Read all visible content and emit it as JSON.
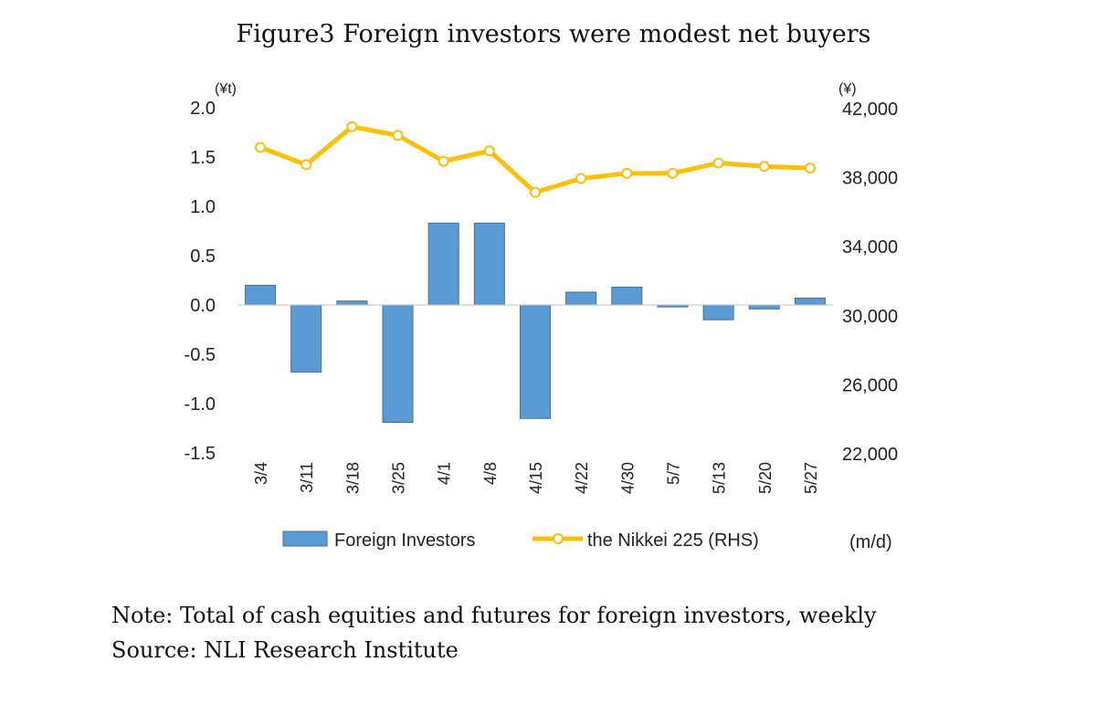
{
  "figure": {
    "title": "Figure3 Foreign investors were modest net buyers",
    "note": "Note: Total of cash equities and futures for foreign investors, weekly",
    "source": "Source: NLI Research Institute"
  },
  "chart_data": {
    "type": "bar",
    "title": "Figure3 Foreign investors were modest net buyers",
    "categories": [
      "3/4",
      "3/11",
      "3/18",
      "3/25",
      "4/1",
      "4/8",
      "4/15",
      "4/22",
      "4/30",
      "5/7",
      "5/13",
      "5/20",
      "5/27"
    ],
    "series": [
      {
        "name": "Foreign Investors",
        "type": "bar",
        "axis": "left",
        "color": "#5b9bd5",
        "values": [
          0.2,
          -0.68,
          0.04,
          -1.19,
          0.83,
          0.83,
          -1.15,
          0.13,
          0.18,
          -0.02,
          -0.15,
          -0.04,
          0.07
        ]
      },
      {
        "name": "the Nikkei 225 (RHS)",
        "type": "line",
        "axis": "right",
        "color": "#ffc000",
        "values": [
          39700,
          38700,
          40900,
          40400,
          38900,
          39500,
          37100,
          37900,
          38200,
          38200,
          38800,
          38600,
          38500
        ]
      }
    ],
    "left_axis": {
      "unit_label": "(¥t)",
      "min": -1.5,
      "max": 2.0,
      "ticks": [
        -1.5,
        -1.0,
        -0.5,
        0.0,
        0.5,
        1.0,
        1.5,
        2.0
      ],
      "tick_labels": [
        "-1.5",
        "-1.0",
        "-0.5",
        "0.0",
        "0.5",
        "1.0",
        "1.5",
        "2.0"
      ]
    },
    "right_axis": {
      "unit_label": "(¥)",
      "min": 22000,
      "max": 42000,
      "ticks": [
        22000,
        26000,
        30000,
        34000,
        38000,
        42000
      ],
      "tick_labels": [
        "22,000",
        "26,000",
        "30,000",
        "34,000",
        "38,000",
        "42,000"
      ]
    },
    "xlabel": "(m/d)",
    "legend": {
      "placement": "bottom",
      "entries": [
        "Foreign Investors",
        "the Nikkei 225 (RHS)"
      ]
    },
    "grid": false
  }
}
